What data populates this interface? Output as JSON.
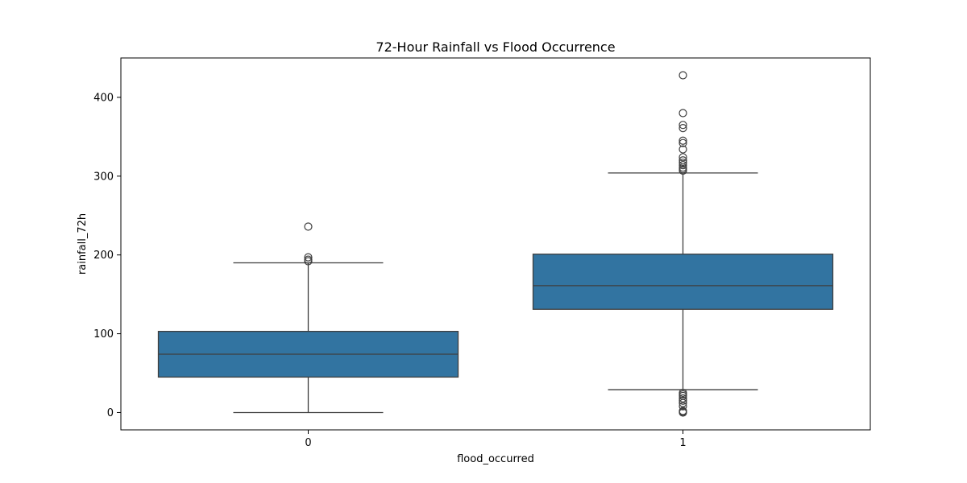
{
  "chart_data": {
    "type": "box",
    "title": "72-Hour Rainfall vs Flood Occurrence",
    "xlabel": "flood_occurred",
    "ylabel": "rainfall_72h",
    "ylim": [
      -22,
      450
    ],
    "y_ticks": [
      0,
      100,
      200,
      300,
      400
    ],
    "categories": [
      "0",
      "1"
    ],
    "box_color": "#3274a1",
    "line_color": "#3f3f3f",
    "boxes": [
      {
        "category": "0",
        "whisker_low": 0,
        "q1": 45,
        "median": 74,
        "q3": 103,
        "whisker_high": 190,
        "outliers": [
          192,
          194,
          197,
          236
        ]
      },
      {
        "category": "1",
        "whisker_low": 29,
        "q1": 131,
        "median": 161,
        "q3": 201,
        "whisker_high": 304,
        "outliers": [
          0,
          1,
          2,
          8,
          12,
          15,
          18,
          21,
          23,
          25,
          307,
          309,
          311,
          314,
          317,
          320,
          324,
          334,
          342,
          345,
          361,
          365,
          380,
          428
        ]
      }
    ]
  }
}
